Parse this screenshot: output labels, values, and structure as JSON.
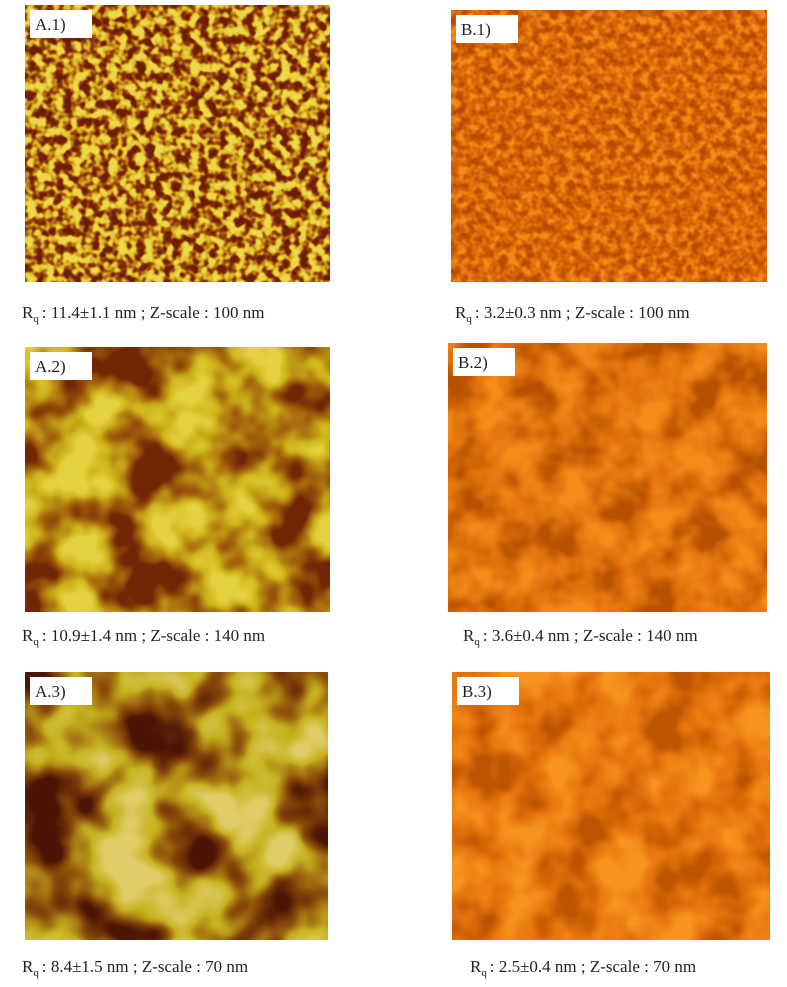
{
  "panels": [
    {
      "label": "A.1)",
      "caption": {
        "symbol": "R",
        "subscript": "q",
        "text": ": 11.4±1.1 nm ; Z-scale : 100 nm"
      }
    },
    {
      "label": "B.1)",
      "caption": {
        "symbol": "R",
        "subscript": "q",
        "text": ": 3.2±0.3 nm ; Z-scale : 100 nm"
      }
    },
    {
      "label": "A.2)",
      "caption": {
        "symbol": "R",
        "subscript": "q",
        "text": ": 10.9±1.4 nm ; Z-scale : 140 nm"
      }
    },
    {
      "label": "B.2)",
      "caption": {
        "symbol": "R",
        "subscript": "q",
        "text": ": 3.6±0.4 nm ; Z-scale : 140 nm"
      }
    },
    {
      "label": "A.3)",
      "caption": {
        "symbol": "R",
        "subscript": "q",
        "text": ": 8.4±1.5 nm ; Z-scale : 70 nm"
      }
    },
    {
      "label": "B.3)",
      "caption": {
        "symbol": "R",
        "subscript": "q",
        "text": ": 2.5±0.4 nm ; Z-scale : 70 nm"
      }
    }
  ]
}
